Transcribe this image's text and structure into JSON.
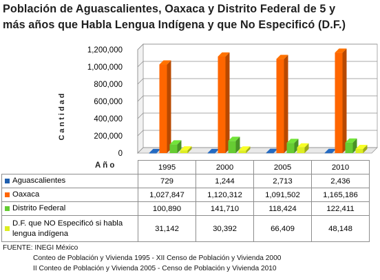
{
  "title_line1": "Población de Aguascalientes, Oaxaca y Distrito Federal de 5 y",
  "title_line2": "más años que Habla Lengua Indígena y que No Especificó (D.F.)",
  "chart_data": {
    "type": "bar",
    "title": "Población de Aguascalientes, Oaxaca y Distrito Federal de 5 y más años que Habla Lengua Indígena y que No Especificó (D.F.)",
    "ylabel": "Cantidad",
    "xlabel": "Año",
    "categories": [
      "1995",
      "2000",
      "2005",
      "2010"
    ],
    "ylim": [
      0,
      1200000
    ],
    "yticks": [
      "0",
      "200,000",
      "400,000",
      "600,000",
      "800,000",
      "1,000,000",
      "1,200,000"
    ],
    "grid": true,
    "series": [
      {
        "name": "Aguascalientes",
        "values": [
          729,
          1244,
          2713,
          2436
        ],
        "color": "#1f5fae",
        "labels": [
          "729",
          "1,244",
          "2,713",
          "2,436"
        ]
      },
      {
        "name": "Oaxaca",
        "values": [
          1027847,
          1120312,
          1091502,
          1165186
        ],
        "color": "#ff6600",
        "labels": [
          "1,027,847",
          "1,120,312",
          "1,091,502",
          "1,165,186"
        ]
      },
      {
        "name": "Distrito Federal",
        "values": [
          100890,
          141710,
          118424,
          122411
        ],
        "color": "#66cc33",
        "labels": [
          "100,890",
          "141,710",
          "118,424",
          "122,411"
        ]
      },
      {
        "name": "D.F. que NO Especificó si habla lengua indígena",
        "values": [
          31142,
          30392,
          66409,
          48148
        ],
        "color": "#ddee22",
        "labels": [
          "31,142",
          "30,392",
          "66,409",
          "48,148"
        ],
        "name_line1": "D.F. que NO Especificó si habla",
        "name_line2": "lengua indígena"
      }
    ]
  },
  "source": {
    "line1": "FUENTE: INEGI México",
    "line2": "Conteo de Población y Vivienda 1995  -  XII Censo de Población y Vivienda 2000",
    "line3": "II Conteo de Población y Vivienda 2005  -   Censo de Población y Vivienda 2010"
  }
}
